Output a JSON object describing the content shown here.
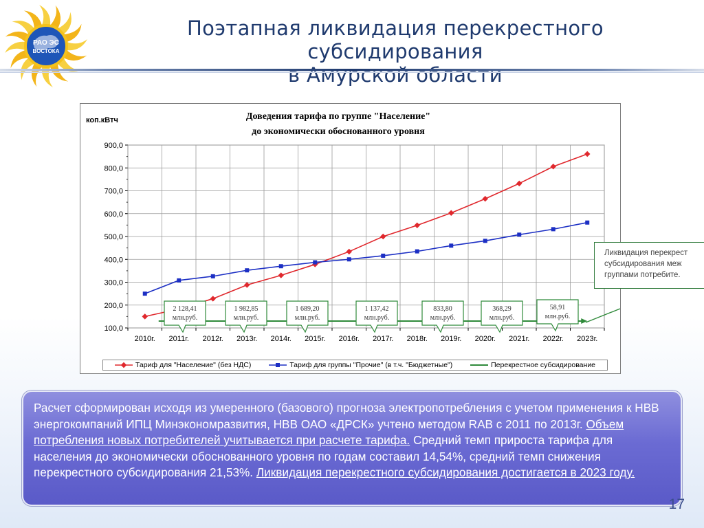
{
  "slide": {
    "title_line1": "Поэтапная ликвидация перекрестного субсидирования",
    "title_line2": "в Амурской области",
    "logo_text_line1": "РАО ЭС",
    "logo_text_line2": "ВОСТОКА",
    "page_number": "17"
  },
  "colors": {
    "title": "#1f3a6e",
    "series_population": "#e0282d",
    "series_other": "#1c2fc4",
    "series_cross": "#2f8a3a",
    "info_box": "#6b6bd3"
  },
  "chart_data": {
    "type": "line",
    "title_line1": "Доведения тарифа по группе \"Население\"",
    "title_line2": "до экономически обоснованного уровня",
    "ylabel": "коп.кВтч",
    "xlabel": "",
    "ylim": [
      100,
      900
    ],
    "yticks": [
      "100,0",
      "200,0",
      "300,0",
      "400,0",
      "500,0",
      "600,0",
      "700,0",
      "800,0",
      "900,0"
    ],
    "categories": [
      "2010г.",
      "2011г.",
      "2012г.",
      "2013г.",
      "2014г.",
      "2015г.",
      "2016г.",
      "2017г.",
      "2018г.",
      "2019г.",
      "2020г.",
      "2021г.",
      "2022г.",
      "2023г."
    ],
    "grid": true,
    "legend_position": "bottom",
    "series": [
      {
        "name": "Тариф для \"Население\" (без НДС)",
        "marker": "diamond",
        "values": [
          150,
          183,
          228,
          288,
          330,
          378,
          434,
          500,
          549,
          603,
          665,
          732,
          806,
          861
        ]
      },
      {
        "name": "Тариф для группы \"Прочие\" (в т.ч. \"Бюджетные\")",
        "marker": "square",
        "values": [
          250,
          308,
          326,
          352,
          370,
          387,
          400,
          416,
          435,
          460,
          481,
          508,
          532,
          561
        ]
      },
      {
        "name": "Перекрестное субсидирование",
        "marker": "none",
        "values": [
          130,
          130,
          130,
          130,
          130,
          130,
          130,
          130,
          130,
          130,
          130,
          130,
          130,
          130
        ]
      }
    ],
    "callouts": [
      {
        "line1": "2 128,41",
        "line2": "млн.руб."
      },
      {
        "line1": "1 982,85",
        "line2": "млн.руб."
      },
      {
        "line1": "1 689,20",
        "line2": "млн.руб."
      },
      {
        "line1": "1 137,42",
        "line2": "млн.руб."
      },
      {
        "line1": "833,80",
        "line2": "млн.руб."
      },
      {
        "line1": "368,29",
        "line2": "млн.руб."
      },
      {
        "line1": "58,91",
        "line2": "млн.руб."
      }
    ],
    "note_lines": [
      "Ликвидация перекрест",
      "субсидирования меж",
      "группами потребите."
    ]
  },
  "info": {
    "text1": "Расчет сформирован исходя из умеренного (базового) прогноза электропотребления с учетом применения к НВВ энергокомпаний ИПЦ Минэкономразвития, НВВ ОАО «ДРСК» учтено методом RAB с 2011 по 2013г. ",
    "link1": "Объем потребления новых потребителей учитывается при расчете тарифа.",
    "text2": " Средний темп прироста тарифа для населения до экономически обоснованного уровня по годам составил 14,54%, средний темп снижения перекрестного субсидирования 21,53%. ",
    "link2": "Ликвидация перекрестного субсидирования достигается в 2023 году."
  }
}
